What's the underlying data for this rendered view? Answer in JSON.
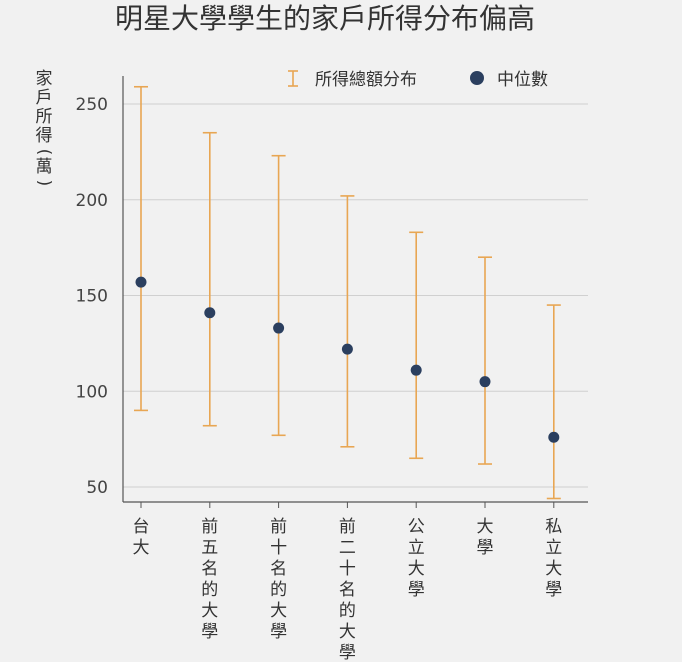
{
  "chart_data": {
    "type": "errorbar",
    "title": "明星大學學生的家戶所得分布偏高",
    "ylabel": "家戶所得(萬)",
    "xlabel": "",
    "categories": [
      "台大",
      "前五名的大學",
      "前十名的大學",
      "前二十名的大學",
      "公立大學",
      "大學",
      "私立大學"
    ],
    "series": [
      {
        "name": "所得總額分布",
        "kind": "range",
        "low": [
          90,
          82,
          77,
          71,
          65,
          62,
          44
        ],
        "high": [
          259,
          235,
          223,
          202,
          183,
          170,
          145
        ]
      },
      {
        "name": "中位數",
        "kind": "point",
        "values": [
          157,
          141,
          133,
          122,
          111,
          105,
          76
        ]
      }
    ],
    "yticks": [
      50,
      100,
      150,
      200,
      250
    ],
    "ylim": [
      43,
      265
    ],
    "grid": true,
    "legend": "top",
    "colors": {
      "range": "#e8a653",
      "point": "#2b3f5f",
      "grid": "#d0d0d0",
      "axis": "#555555"
    }
  }
}
